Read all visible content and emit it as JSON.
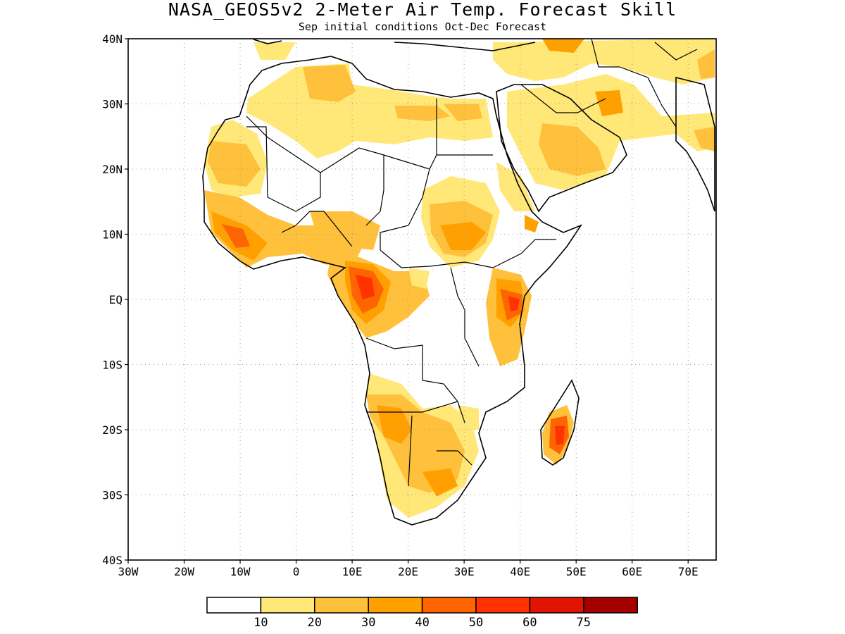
{
  "header": {
    "title": "NASA_GEOS5v2 2-Meter Air Temp. Forecast Skill",
    "subtitle": "Sep initial conditions  Oct-Dec Forecast"
  },
  "map": {
    "projection": "lat-lon",
    "lon_range": [
      -30,
      75
    ],
    "lat_range": [
      -40,
      40
    ],
    "grid": "dotted",
    "lon_ticks": [
      "30W",
      "20W",
      "10W",
      "0",
      "10E",
      "20E",
      "30E",
      "40E",
      "50E",
      "60E",
      "70E"
    ],
    "lat_ticks": [
      "40N",
      "30N",
      "20N",
      "10N",
      "EQ",
      "10S",
      "20S",
      "30S",
      "40S"
    ]
  },
  "colorbar": {
    "labels": [
      "10",
      "20",
      "30",
      "40",
      "50",
      "60",
      "75"
    ],
    "colors": [
      "#ffffff",
      "#ffe878",
      "#ffc03c",
      "#ffa000",
      "#ff6400",
      "#ff3200",
      "#e11400",
      "#a50000"
    ]
  },
  "colors": {
    "background": "#ffffff",
    "coast": "#000000"
  }
}
